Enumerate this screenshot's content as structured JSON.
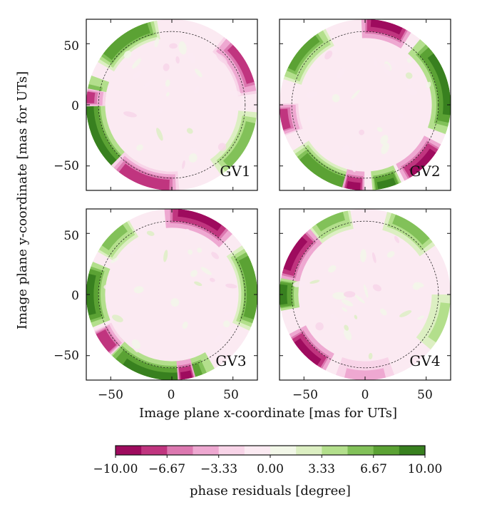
{
  "chart_data": {
    "type": "heatmap",
    "xlabel": "Image plane x-coordinate [mas for UTs]",
    "ylabel": "Image plane y-coordinate [mas for UTs]",
    "xlim": [
      -70,
      70
    ],
    "ylim": [
      -70,
      70
    ],
    "xticks": [
      -50,
      0,
      50
    ],
    "yticks": [
      -50,
      0,
      50
    ],
    "xtick_labels": [
      "−50",
      "0",
      "50"
    ],
    "ytick_labels": [
      "−50",
      "0",
      "50"
    ],
    "field_radius": 70,
    "dashed_circle_radius": 60,
    "panels": [
      {
        "name": "GV1",
        "blobs": [
          {
            "angle_deg": 125,
            "spread_deg": 50,
            "value": 8
          },
          {
            "angle_deg": 200,
            "spread_deg": 80,
            "value": 9
          },
          {
            "angle_deg": 30,
            "spread_deg": 45,
            "value": -7
          },
          {
            "angle_deg": 250,
            "spread_deg": 50,
            "value": -8
          },
          {
            "angle_deg": 175,
            "spread_deg": 12,
            "value": -7
          },
          {
            "angle_deg": 330,
            "spread_deg": 50,
            "value": 5
          }
        ]
      },
      {
        "name": "GV2",
        "blobs": [
          {
            "angle_deg": 75,
            "spread_deg": 35,
            "value": -9
          },
          {
            "angle_deg": 15,
            "spread_deg": 70,
            "value": 9
          },
          {
            "angle_deg": 140,
            "spread_deg": 45,
            "value": 7
          },
          {
            "angle_deg": 190,
            "spread_deg": 22,
            "value": -7
          },
          {
            "angle_deg": 240,
            "spread_deg": 55,
            "value": 8
          },
          {
            "angle_deg": 285,
            "spread_deg": 20,
            "value": 9
          },
          {
            "angle_deg": 262,
            "spread_deg": 15,
            "value": -9
          },
          {
            "angle_deg": 315,
            "spread_deg": 35,
            "value": -9
          }
        ]
      },
      {
        "name": "GV3",
        "blobs": [
          {
            "angle_deg": 70,
            "spread_deg": 50,
            "value": -9
          },
          {
            "angle_deg": 180,
            "spread_deg": 45,
            "value": 9
          },
          {
            "angle_deg": 135,
            "spread_deg": 30,
            "value": 6
          },
          {
            "angle_deg": 260,
            "spread_deg": 80,
            "value": 9
          },
          {
            "angle_deg": 215,
            "spread_deg": 20,
            "value": -8
          },
          {
            "angle_deg": 5,
            "spread_deg": 60,
            "value": 8
          },
          {
            "angle_deg": 280,
            "spread_deg": 12,
            "value": -9
          }
        ]
      },
      {
        "name": "GV4",
        "blobs": [
          {
            "angle_deg": 150,
            "spread_deg": 40,
            "value": -9
          },
          {
            "angle_deg": 180,
            "spread_deg": 22,
            "value": 9
          },
          {
            "angle_deg": 225,
            "spread_deg": 35,
            "value": -9
          },
          {
            "angle_deg": 55,
            "spread_deg": 40,
            "value": 5
          },
          {
            "angle_deg": 115,
            "spread_deg": 30,
            "value": 6
          },
          {
            "angle_deg": 340,
            "spread_deg": 40,
            "value": 4
          },
          {
            "angle_deg": 270,
            "spread_deg": 40,
            "value": -4
          }
        ]
      }
    ],
    "colorbar": {
      "label": "phase residuals [degree]",
      "vmin": -10,
      "vmax": 10,
      "tick_values": [
        -10,
        -6.67,
        -3.33,
        0,
        3.33,
        6.67,
        10
      ],
      "tick_labels": [
        "−10.00",
        "−6.67",
        "−3.33",
        "0.00",
        "3.33",
        "6.67",
        "10.00"
      ],
      "levels": 12,
      "colors": [
        "#9e0b5e",
        "#c0357f",
        "#dc78b0",
        "#eea8d1",
        "#f8d4e8",
        "#fbeaf2",
        "#f2f7e8",
        "#dcefc2",
        "#b3df8c",
        "#82c159",
        "#5ba234",
        "#38801f"
      ]
    }
  }
}
